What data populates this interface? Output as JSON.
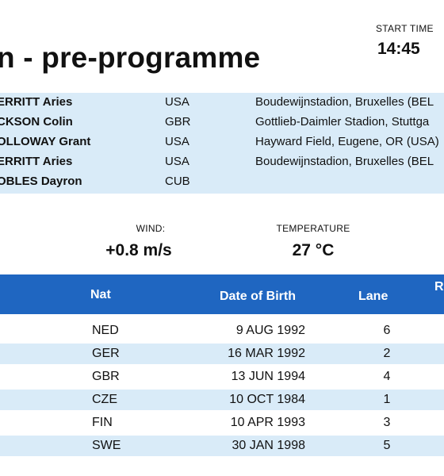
{
  "header": {
    "title": "n - pre-programme",
    "start_time_label": "START TIME",
    "start_time": "14:45"
  },
  "records": [
    {
      "name": "ERRITT Aries",
      "nat": "USA",
      "venue": "Boudewijnstadion, Bruxelles (BEL"
    },
    {
      "name": "CKSON Colin",
      "nat": "GBR",
      "venue": "Gottlieb-Daimler Stadion, Stuttga"
    },
    {
      "name": "OLLOWAY Grant",
      "nat": "USA",
      "venue": "Hayward Field, Eugene, OR (USA)"
    },
    {
      "name": "ERRITT Aries",
      "nat": "USA",
      "venue": "Boudewijnstadion, Bruxelles (BEL"
    },
    {
      "name": "OBLES Dayron",
      "nat": "CUB",
      "venue": ""
    }
  ],
  "conditions": {
    "wind_label": "WIND:",
    "wind_value": "+0.8 m/s",
    "temperature_label": "TEMPERATURE",
    "temperature_value": "27 °C"
  },
  "table": {
    "headers": {
      "nat": "Nat",
      "dob": "Date of Birth",
      "lane": "Lane",
      "extra": "R"
    },
    "rows": [
      {
        "nat": "NED",
        "dob": "9 AUG 1992",
        "lane": "6"
      },
      {
        "nat": "GER",
        "dob": "16 MAR 1992",
        "lane": "2"
      },
      {
        "nat": "GBR",
        "dob": "13 JUN 1994",
        "lane": "4"
      },
      {
        "nat": "CZE",
        "dob": "10 OCT 1984",
        "lane": "1"
      },
      {
        "nat": "FIN",
        "dob": "10 APR 1993",
        "lane": "3"
      },
      {
        "nat": "SWE",
        "dob": "30 JAN 1998",
        "lane": "5"
      }
    ]
  },
  "colors": {
    "header_blue": "#1f66c1",
    "row_shade": "#d9ebf8"
  }
}
